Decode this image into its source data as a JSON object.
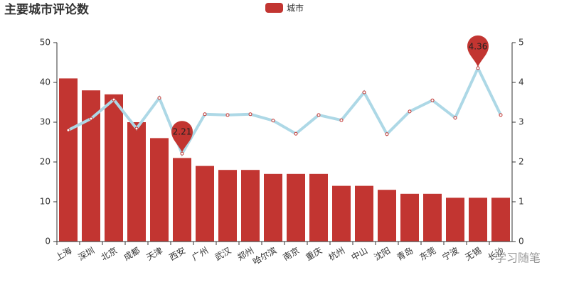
{
  "chart_data": {
    "type": "bar",
    "title": "主要城市评论数",
    "categories": [
      "上海",
      "深圳",
      "北京",
      "成都",
      "天津",
      "西安",
      "广州",
      "武汉",
      "郑州",
      "哈尔滨",
      "南京",
      "重庆",
      "杭州",
      "中山",
      "沈阳",
      "青岛",
      "东莞",
      "宁波",
      "无锡",
      "长沙"
    ],
    "series": [
      {
        "name": "城市",
        "type": "bar",
        "color": "#c23531",
        "values": [
          41,
          38,
          37,
          30,
          26,
          21,
          19,
          18,
          18,
          17,
          17,
          17,
          14,
          14,
          13,
          12,
          12,
          11,
          11,
          11
        ]
      },
      {
        "type": "line",
        "axis": "y2",
        "color": "#add8e6",
        "values": [
          2.8,
          3.09,
          3.57,
          2.84,
          3.61,
          2.21,
          3.2,
          3.18,
          3.2,
          3.04,
          2.71,
          3.18,
          3.05,
          3.75,
          2.7,
          3.27,
          3.55,
          3.11,
          4.36,
          3.18
        ]
      }
    ],
    "ylim": [
      0,
      50
    ],
    "yticks": [
      0,
      10,
      20,
      30,
      40,
      50
    ],
    "y2lim": [
      0,
      5
    ],
    "y2ticks": [
      0,
      1,
      2,
      3,
      4,
      5
    ],
    "watermark": "学习随笔"
  }
}
